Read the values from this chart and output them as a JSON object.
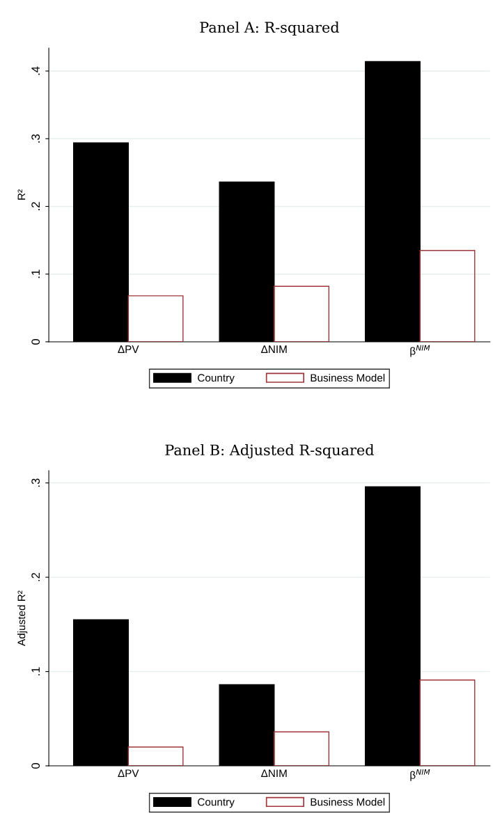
{
  "chart_data": [
    {
      "type": "bar",
      "title": "Panel A: R-squared",
      "ylabel": "R²",
      "categories": [
        "ΔPV",
        "ΔNIM",
        "β$^{NIM}$"
      ],
      "series": [
        {
          "name": "Country",
          "color": "#000000",
          "values": [
            0.294,
            0.236,
            0.414
          ]
        },
        {
          "name": "Business Model",
          "color": "#a0353a",
          "values": [
            0.068,
            0.082,
            0.135
          ]
        }
      ],
      "ylim": [
        0,
        0.434
      ],
      "yticks": [
        0,
        {
          "value": 0.1,
          "label": ".1"
        },
        {
          "value": 0.2,
          "label": ".2"
        },
        {
          "value": 0.3,
          "label": ".3"
        },
        {
          "value": 0.4,
          "label": ".4"
        }
      ],
      "grid": "y",
      "legend": "bottom"
    },
    {
      "type": "bar",
      "title": "Panel B: Adjusted R-squared",
      "ylabel": "Adjusted R²",
      "categories": [
        "ΔPV",
        "ΔNIM",
        "β$^{NIM}$"
      ],
      "series": [
        {
          "name": "Country",
          "color": "#000000",
          "values": [
            0.155,
            0.086,
            0.296
          ]
        },
        {
          "name": "Business Model",
          "color": "#a0353a",
          "values": [
            0.02,
            0.036,
            0.091
          ]
        }
      ],
      "ylim": [
        0,
        0.313
      ],
      "yticks": [
        0,
        {
          "value": 0.1,
          "label": ".1"
        },
        {
          "value": 0.2,
          "label": ".2"
        },
        {
          "value": 0.3,
          "label": ".3"
        }
      ],
      "grid": "y",
      "legend": "bottom"
    }
  ]
}
